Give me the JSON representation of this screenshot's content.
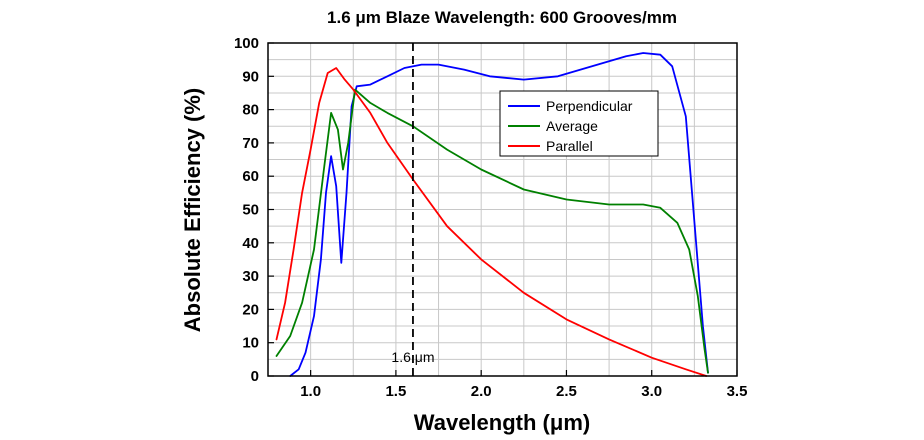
{
  "chart_data": {
    "type": "line",
    "title": "1.6 μm Blaze Wavelength: 600 Grooves/mm",
    "xlabel": "Wavelength (μm)",
    "ylabel": "Absolute Efficiency (%)",
    "xlim": [
      0.75,
      3.5
    ],
    "ylim": [
      0,
      100
    ],
    "xticks": [
      1.0,
      1.5,
      2.0,
      2.5,
      3.0,
      3.5
    ],
    "xtick_labels": [
      "1.0",
      "1.5",
      "2.0",
      "2.5",
      "3.0",
      "3.5"
    ],
    "yticks": [
      0,
      10,
      20,
      30,
      40,
      50,
      60,
      70,
      80,
      90,
      100
    ],
    "ytick_labels": [
      "0",
      "10",
      "20",
      "30",
      "40",
      "50",
      "60",
      "70",
      "80",
      "90",
      "100"
    ],
    "grid": true,
    "legend_position": "upper-right",
    "annotations": [
      {
        "text": "1.6 μm",
        "x": 1.6,
        "style": "dashed vertical line"
      }
    ],
    "series": [
      {
        "name": "Perpendicular",
        "color": "#0000ff",
        "points": [
          [
            0.88,
            0
          ],
          [
            0.93,
            2
          ],
          [
            0.97,
            7
          ],
          [
            1.02,
            18
          ],
          [
            1.06,
            35
          ],
          [
            1.09,
            55
          ],
          [
            1.12,
            66
          ],
          [
            1.15,
            57
          ],
          [
            1.18,
            34
          ],
          [
            1.21,
            55
          ],
          [
            1.24,
            81
          ],
          [
            1.27,
            87
          ],
          [
            1.35,
            87.5
          ],
          [
            1.45,
            90
          ],
          [
            1.55,
            92.5
          ],
          [
            1.65,
            93.5
          ],
          [
            1.75,
            93.5
          ],
          [
            1.9,
            92
          ],
          [
            2.05,
            90
          ],
          [
            2.25,
            89
          ],
          [
            2.45,
            90
          ],
          [
            2.65,
            93
          ],
          [
            2.85,
            96
          ],
          [
            2.95,
            97
          ],
          [
            3.05,
            96.5
          ],
          [
            3.12,
            93
          ],
          [
            3.2,
            78
          ],
          [
            3.26,
            40
          ],
          [
            3.3,
            15
          ],
          [
            3.33,
            1
          ]
        ]
      },
      {
        "name": "Average",
        "color": "#008000",
        "points": [
          [
            0.8,
            6
          ],
          [
            0.88,
            12
          ],
          [
            0.95,
            22
          ],
          [
            1.02,
            38
          ],
          [
            1.08,
            63
          ],
          [
            1.12,
            79
          ],
          [
            1.16,
            74
          ],
          [
            1.19,
            62
          ],
          [
            1.22,
            70
          ],
          [
            1.26,
            86
          ],
          [
            1.35,
            82
          ],
          [
            1.45,
            79
          ],
          [
            1.6,
            75
          ],
          [
            1.8,
            68
          ],
          [
            2.0,
            62
          ],
          [
            2.25,
            56
          ],
          [
            2.5,
            53
          ],
          [
            2.75,
            51.5
          ],
          [
            2.95,
            51.5
          ],
          [
            3.05,
            50.5
          ],
          [
            3.15,
            46
          ],
          [
            3.22,
            38
          ],
          [
            3.27,
            24
          ],
          [
            3.31,
            8
          ],
          [
            3.33,
            1
          ]
        ]
      },
      {
        "name": "Parallel",
        "color": "#ff0000",
        "points": [
          [
            0.8,
            11
          ],
          [
            0.85,
            22
          ],
          [
            0.9,
            38
          ],
          [
            0.95,
            55
          ],
          [
            1.0,
            68
          ],
          [
            1.05,
            82
          ],
          [
            1.1,
            91
          ],
          [
            1.15,
            92.5
          ],
          [
            1.2,
            89
          ],
          [
            1.25,
            86
          ],
          [
            1.35,
            79
          ],
          [
            1.45,
            70
          ],
          [
            1.6,
            59
          ],
          [
            1.8,
            45
          ],
          [
            2.0,
            35
          ],
          [
            2.25,
            25
          ],
          [
            2.5,
            17
          ],
          [
            2.75,
            11
          ],
          [
            3.0,
            5.5
          ],
          [
            3.2,
            2
          ],
          [
            3.32,
            0
          ]
        ]
      }
    ]
  }
}
